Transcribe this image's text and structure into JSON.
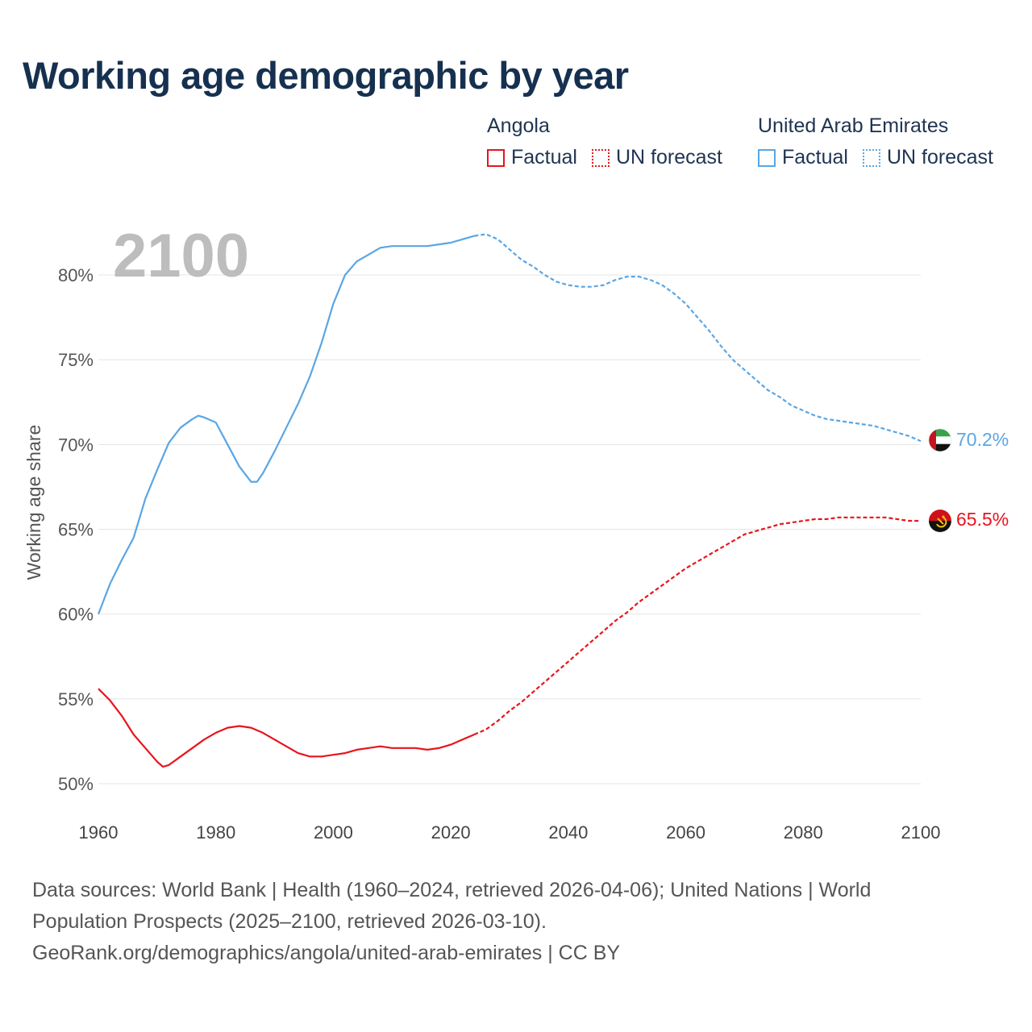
{
  "title": "Working age demographic by year",
  "legend": {
    "groups": [
      {
        "country": "Angola",
        "factual_label": "Factual",
        "forecast_label": "UN forecast",
        "color": "#e8141c"
      },
      {
        "country": "United Arab Emirates",
        "factual_label": "Factual",
        "forecast_label": "UN forecast",
        "color": "#5aa6e4"
      }
    ]
  },
  "year_watermark": "2100",
  "chart_data": {
    "type": "line",
    "title": "Working age demographic by year",
    "xlabel": "",
    "ylabel": "Working age share",
    "xlim": [
      1960,
      2100
    ],
    "ylim": [
      49.5,
      83
    ],
    "x_ticks": [
      "1960",
      "1980",
      "2000",
      "2020",
      "2040",
      "2060",
      "2080",
      "2100"
    ],
    "y_ticks": [
      "50%",
      "55%",
      "60%",
      "65%",
      "70%",
      "75%",
      "80%"
    ],
    "y_tick_values": [
      50,
      55,
      60,
      65,
      70,
      75,
      80
    ],
    "x_tick_values": [
      1960,
      1980,
      2000,
      2020,
      2040,
      2060,
      2080,
      2100
    ],
    "grid": true,
    "forecast_start": 2024,
    "series": [
      {
        "name": "Angola",
        "color": "#e8141c",
        "end_label": "65.5%",
        "x": [
          1960,
          1962,
          1964,
          1966,
          1968,
          1970,
          1971,
          1972,
          1974,
          1976,
          1978,
          1980,
          1982,
          1984,
          1986,
          1988,
          1990,
          1992,
          1994,
          1996,
          1998,
          2000,
          2002,
          2004,
          2006,
          2008,
          2010,
          2012,
          2014,
          2016,
          2018,
          2020,
          2022,
          2024,
          2026,
          2028,
          2030,
          2032,
          2034,
          2036,
          2038,
          2040,
          2042,
          2044,
          2046,
          2048,
          2050,
          2052,
          2054,
          2056,
          2058,
          2060,
          2062,
          2064,
          2066,
          2068,
          2070,
          2072,
          2074,
          2076,
          2078,
          2080,
          2082,
          2084,
          2086,
          2088,
          2090,
          2092,
          2094,
          2096,
          2098,
          2100
        ],
        "y": [
          55.6,
          54.9,
          54.0,
          52.9,
          52.1,
          51.3,
          51.0,
          51.1,
          51.6,
          52.1,
          52.6,
          53.0,
          53.3,
          53.4,
          53.3,
          53.0,
          52.6,
          52.2,
          51.8,
          51.6,
          51.6,
          51.7,
          51.8,
          52.0,
          52.1,
          52.2,
          52.1,
          52.1,
          52.1,
          52.0,
          52.1,
          52.3,
          52.6,
          52.9,
          53.2,
          53.7,
          54.3,
          54.8,
          55.4,
          56.0,
          56.6,
          57.2,
          57.8,
          58.4,
          59.0,
          59.6,
          60.1,
          60.7,
          61.2,
          61.7,
          62.2,
          62.7,
          63.1,
          63.5,
          63.9,
          64.3,
          64.7,
          64.9,
          65.1,
          65.3,
          65.4,
          65.5,
          65.6,
          65.6,
          65.7,
          65.7,
          65.7,
          65.7,
          65.7,
          65.6,
          65.5,
          65.5
        ]
      },
      {
        "name": "United Arab Emirates",
        "color": "#5aa6e4",
        "end_label": "70.2%",
        "x": [
          1960,
          1962,
          1964,
          1966,
          1968,
          1970,
          1972,
          1974,
          1976,
          1977,
          1978,
          1980,
          1982,
          1984,
          1986,
          1987,
          1988,
          1990,
          1992,
          1994,
          1996,
          1998,
          2000,
          2002,
          2004,
          2006,
          2008,
          2010,
          2012,
          2014,
          2016,
          2018,
          2020,
          2022,
          2024,
          2026,
          2028,
          2030,
          2032,
          2034,
          2036,
          2038,
          2040,
          2042,
          2044,
          2046,
          2048,
          2050,
          2052,
          2054,
          2056,
          2058,
          2060,
          2062,
          2064,
          2066,
          2068,
          2070,
          2072,
          2074,
          2076,
          2078,
          2080,
          2082,
          2084,
          2086,
          2088,
          2090,
          2092,
          2094,
          2096,
          2098,
          2100
        ],
        "y": [
          60.0,
          61.8,
          63.2,
          64.5,
          66.8,
          68.5,
          70.1,
          71.0,
          71.5,
          71.7,
          71.6,
          71.3,
          70.0,
          68.7,
          67.8,
          67.8,
          68.3,
          69.6,
          71.0,
          72.4,
          74.0,
          76.0,
          78.3,
          80.0,
          80.8,
          81.2,
          81.6,
          81.7,
          81.7,
          81.7,
          81.7,
          81.8,
          81.9,
          82.1,
          82.3,
          82.4,
          82.1,
          81.5,
          80.9,
          80.5,
          80.0,
          79.6,
          79.4,
          79.3,
          79.3,
          79.4,
          79.7,
          79.9,
          79.9,
          79.7,
          79.4,
          78.9,
          78.3,
          77.5,
          76.7,
          75.8,
          75.0,
          74.4,
          73.8,
          73.2,
          72.8,
          72.3,
          72.0,
          71.7,
          71.5,
          71.4,
          71.3,
          71.2,
          71.1,
          70.9,
          70.7,
          70.5,
          70.2
        ]
      }
    ]
  },
  "source": {
    "line1": "Data sources: World Bank | Health (1960–2024, retrieved 2026-04-06); United Nations | World",
    "line2": "Population Prospects (2025–2100, retrieved 2026-03-10).",
    "line3": "GeoRank.org/demographics/angola/united-arab-emirates | CC BY"
  }
}
